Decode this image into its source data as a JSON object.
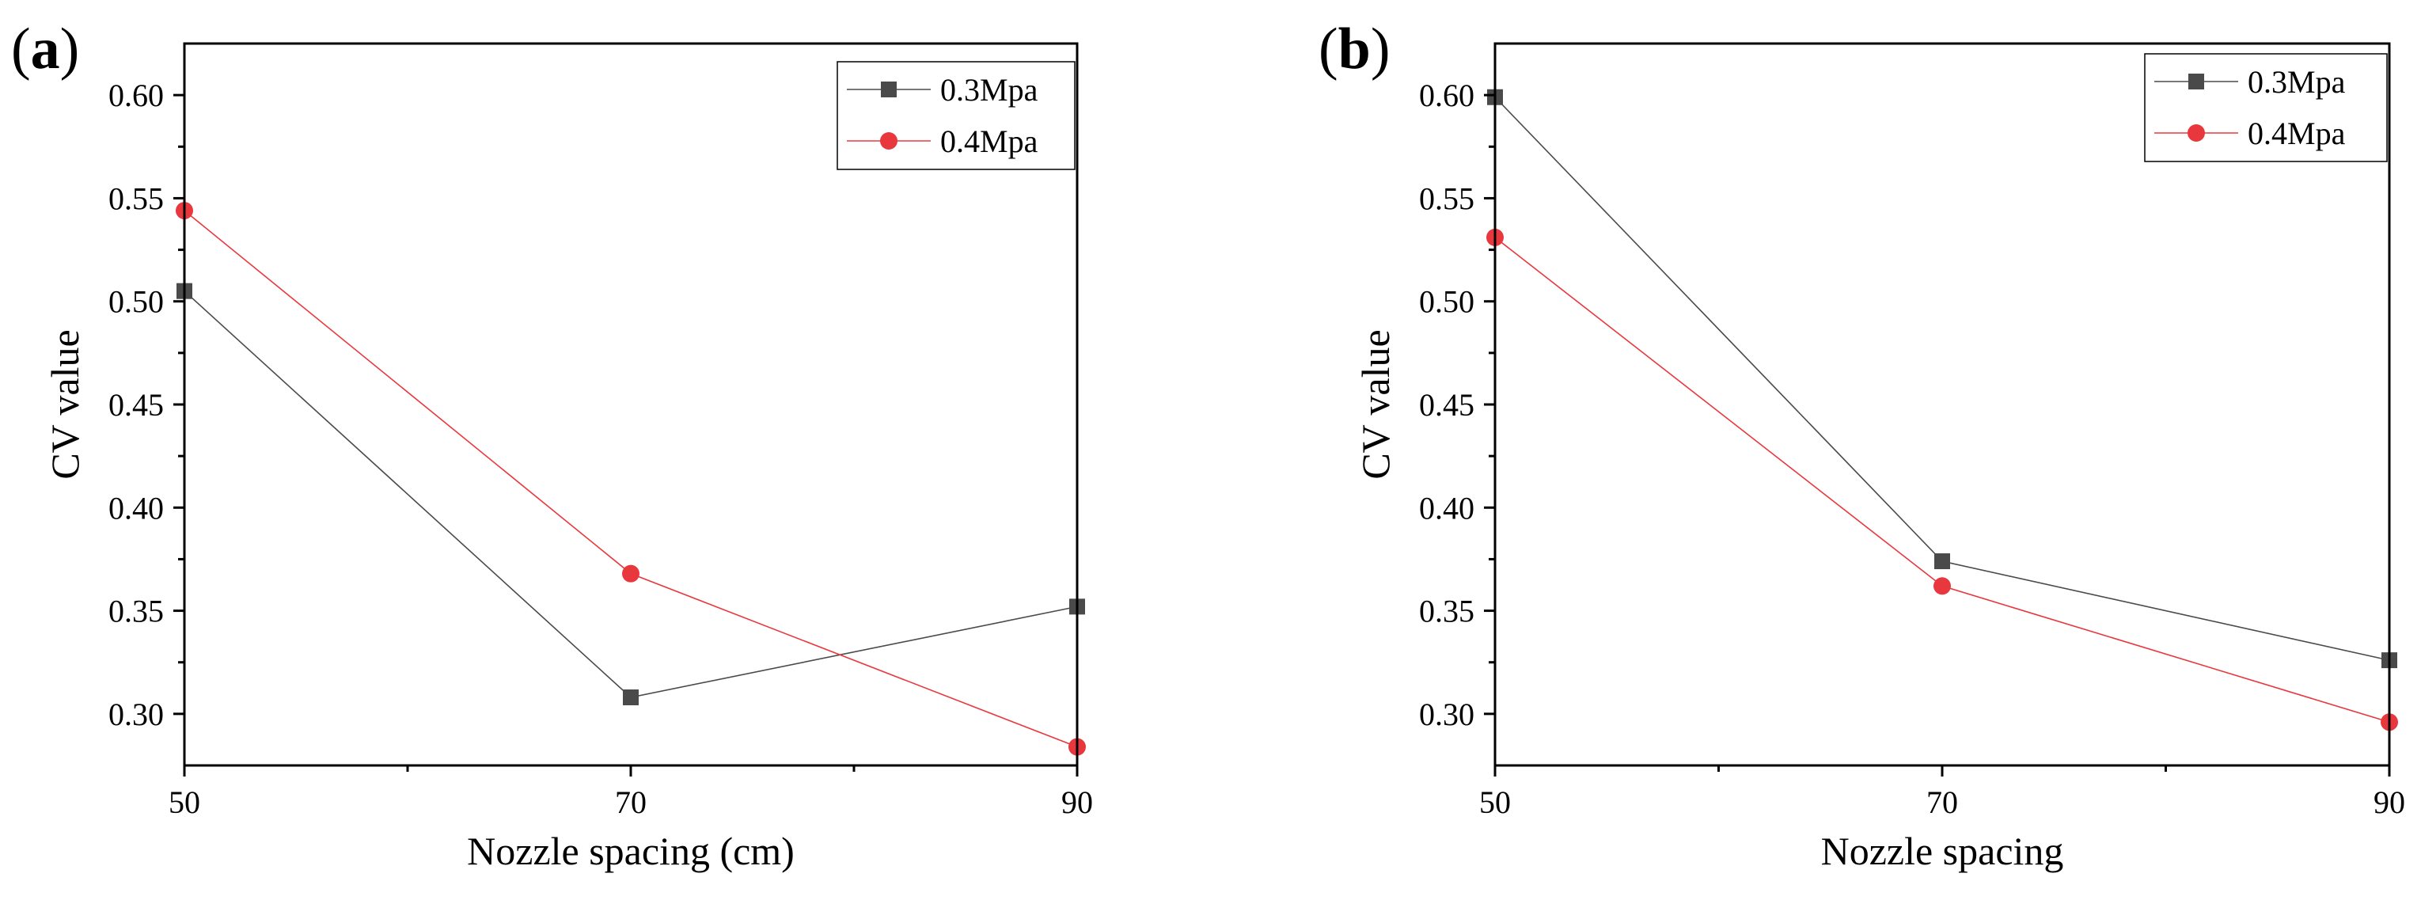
{
  "chart_data": [
    {
      "type": "line",
      "panel_label": "a",
      "title": "",
      "xlabel": "Nozzle spacing (cm)",
      "ylabel": "CV value",
      "xlim": [
        50,
        90
      ],
      "ylim": [
        0.275,
        0.625
      ],
      "xticks": [
        50,
        70,
        90
      ],
      "xtick_labels": [
        "50",
        "70",
        "90"
      ],
      "yticks": [
        0.3,
        0.35,
        0.4,
        0.45,
        0.5,
        0.55,
        0.6
      ],
      "ytick_labels": [
        "0.30",
        "0.35",
        "0.40",
        "0.45",
        "0.50",
        "0.55",
        "0.60"
      ],
      "legend_position": "top-right",
      "grid": false,
      "x": [
        50,
        70,
        90
      ],
      "series": [
        {
          "name": "0.3Mpa",
          "marker": "square",
          "color": "#4a4a4a",
          "values": [
            0.505,
            0.308,
            0.352
          ]
        },
        {
          "name": "0.4Mpa",
          "marker": "circle",
          "color": "#e8383d",
          "values": [
            0.544,
            0.368,
            0.284
          ]
        }
      ]
    },
    {
      "type": "line",
      "panel_label": "b",
      "title": "",
      "xlabel": "Nozzle spacing",
      "ylabel": "CV value",
      "xlim": [
        50,
        90
      ],
      "ylim": [
        0.275,
        0.625
      ],
      "xticks": [
        50,
        70,
        90
      ],
      "xtick_labels": [
        "50",
        "70",
        "90"
      ],
      "yticks": [
        0.3,
        0.35,
        0.4,
        0.45,
        0.5,
        0.55,
        0.6
      ],
      "ytick_labels": [
        "0.30",
        "0.35",
        "0.40",
        "0.45",
        "0.50",
        "0.55",
        "0.60"
      ],
      "legend_position": "top-right",
      "grid": false,
      "x": [
        50,
        70,
        90
      ],
      "series": [
        {
          "name": "0.3Mpa",
          "marker": "square",
          "color": "#4a4a4a",
          "values": [
            0.599,
            0.374,
            0.326
          ]
        },
        {
          "name": "0.4Mpa",
          "marker": "circle",
          "color": "#e8383d",
          "values": [
            0.531,
            0.362,
            0.296
          ]
        }
      ]
    }
  ]
}
